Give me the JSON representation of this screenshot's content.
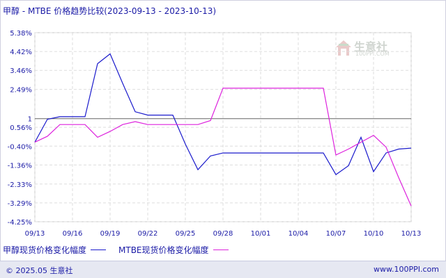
{
  "header": {
    "title": "甲醇 - MTBE 价格趋势比较(2023-09-13 - 2023-10-13)"
  },
  "footer": {
    "copyright": "© 2025.05 生意社",
    "site": "www.100PPI.com"
  },
  "watermark": {
    "name": "生意社",
    "url": "100PPI.COM"
  },
  "colors": {
    "series1": "#1a1acc",
    "series2": "#dd22dd",
    "text": "#1a1aa6",
    "grid": "#d8d8d8"
  },
  "chart_data": {
    "type": "line",
    "title": "甲醇 - MTBE 价格趋势比较(2023-09-13 - 2023-10-13)",
    "xlabel": "",
    "ylabel": "",
    "y_ticks": [
      "5.38%",
      "4.42%",
      "3.46%",
      "2.49%",
      "1",
      "0.56%",
      "-0.40%",
      "-1.36%",
      "-2.33%",
      "-3.29%",
      "-4.25%"
    ],
    "y_tick_values": [
      5.38,
      4.42,
      3.46,
      2.49,
      1.0,
      0.56,
      -0.4,
      -1.36,
      -2.33,
      -3.29,
      -4.25
    ],
    "x_ticks": [
      "09/13",
      "09/16",
      "09/19",
      "09/22",
      "09/25",
      "09/28",
      "10/01",
      "10/04",
      "10/07",
      "10/10",
      "10/13"
    ],
    "ylim": [
      -4.25,
      5.38
    ],
    "x": [
      "09/13",
      "09/14",
      "09/15",
      "09/16",
      "09/17",
      "09/18",
      "09/19",
      "09/20",
      "09/21",
      "09/22",
      "09/23",
      "09/24",
      "09/25",
      "09/26",
      "09/27",
      "09/28",
      "09/29",
      "09/30",
      "10/01",
      "10/02",
      "10/03",
      "10/04",
      "10/05",
      "10/06",
      "10/07",
      "10/08",
      "10/09",
      "10/10",
      "10/11",
      "10/12",
      "10/13"
    ],
    "series": [
      {
        "name": "甲醇现货价格变化幅度",
        "values": [
          -0.2,
          0.97,
          1.1,
          1.1,
          1.1,
          3.8,
          4.3,
          2.8,
          1.35,
          1.18,
          1.18,
          1.18,
          -0.3,
          -1.6,
          -0.9,
          -0.75,
          -0.75,
          -0.75,
          -0.75,
          -0.75,
          -0.75,
          -0.75,
          -0.75,
          -0.75,
          -1.85,
          -1.4,
          0.05,
          -1.7,
          -0.75,
          -0.55,
          -0.5
        ]
      },
      {
        "name": "MTBE现货价格变化幅度",
        "values": [
          -0.2,
          0.1,
          0.7,
          0.7,
          0.7,
          0.05,
          0.35,
          0.7,
          0.85,
          0.7,
          0.7,
          0.7,
          0.7,
          0.7,
          0.9,
          2.55,
          2.55,
          2.55,
          2.55,
          2.55,
          2.55,
          2.55,
          2.55,
          2.55,
          -0.85,
          -0.55,
          -0.2,
          0.15,
          -0.45,
          -2.0,
          -3.45
        ]
      }
    ],
    "grid": true,
    "legend_position": "bottom-left"
  }
}
